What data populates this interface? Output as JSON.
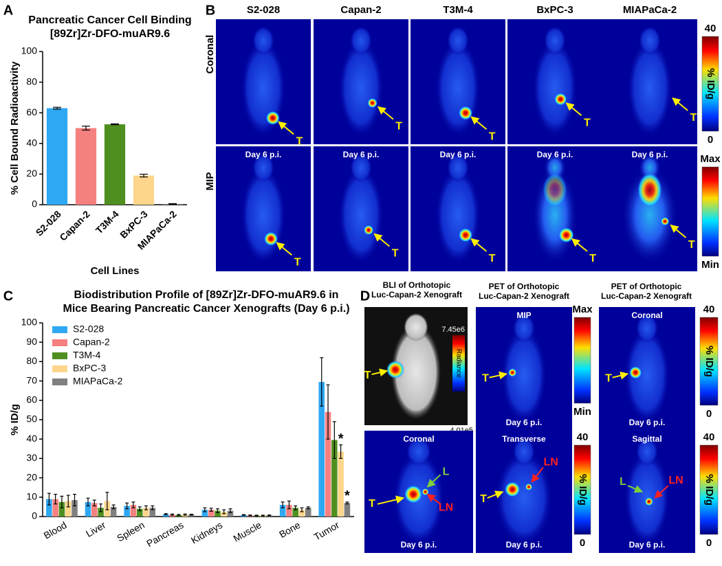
{
  "panel_labels": [
    "A",
    "B",
    "C",
    "D"
  ],
  "chart_data": [
    {
      "type": "bar",
      "title": [
        "Pancreatic Cancer Cell Binding",
        "[89Zr]Zr-DFO-muAR9.6"
      ],
      "x_label": "Cell Lines",
      "y_label": "% Cell Bound Radioactivity",
      "categories": [
        "S2-028",
        "Capan-2",
        "T3M-4",
        "BxPC-3",
        "MIAPaCa-2"
      ],
      "values": [
        63,
        50,
        52.5,
        19,
        0.5
      ],
      "errors": [
        0.6,
        1.3,
        0.3,
        0.9,
        0.2
      ],
      "colors": [
        "#2ea8f2",
        "#f58080",
        "#4f8f1f",
        "#fdd68c",
        "#808080"
      ],
      "ylim": [
        0,
        100
      ],
      "yticks": [
        0,
        20,
        40,
        60,
        80,
        100
      ]
    },
    {
      "type": "grouped_bar",
      "title": [
        "Biodistribution Profile of [89Zr]Zr-DFO-muAR9.6 in",
        "Mice Bearing Pancreatic Cancer Xenografts (Day 6 p.i.)"
      ],
      "y_label": "% ID/g",
      "categories": [
        "Blood",
        "Liver",
        "Spleen",
        "Pancreas",
        "Kidneys",
        "Muscle",
        "Bone",
        "Tumor"
      ],
      "series": [
        {
          "name": "S2-028",
          "color": "#2ea8f2",
          "values": [
            9,
            7.5,
            5.5,
            1.2,
            3.5,
            0.8,
            6,
            69.5
          ],
          "errors": [
            3,
            2,
            1.5,
            0.3,
            1,
            0.2,
            1.5,
            12.5
          ]
        },
        {
          "name": "Capan-2",
          "color": "#f58080",
          "values": [
            9,
            7,
            6,
            1,
            3.5,
            0.6,
            6,
            54
          ],
          "errors": [
            2.5,
            1.5,
            1.5,
            0.3,
            0.8,
            0.2,
            2,
            14
          ]
        },
        {
          "name": "T3M-4",
          "color": "#4f8f1f",
          "values": [
            7.5,
            4.5,
            4,
            0.8,
            3,
            0.5,
            4.5,
            39.5
          ],
          "errors": [
            3,
            2,
            1,
            0.3,
            1,
            0.2,
            1,
            9.5
          ]
        },
        {
          "name": "BxPC-3",
          "color": "#fdd68c",
          "values": [
            8,
            8,
            4.5,
            1,
            2.5,
            0.5,
            3.5,
            33.5
          ],
          "errors": [
            3,
            4.5,
            1,
            0.3,
            1,
            0.2,
            1,
            3.5
          ]
        },
        {
          "name": "MIAPaCa-2",
          "color": "#808080",
          "values": [
            8.5,
            5,
            4.5,
            1,
            3,
            0.6,
            4.5,
            7
          ],
          "errors": [
            3,
            1,
            1,
            0.2,
            1,
            0.2,
            0.5,
            0.5
          ]
        }
      ],
      "annotations": [
        {
          "text": "*",
          "category": "Tumor",
          "series": "BxPC-3"
        },
        {
          "text": "*",
          "category": "Tumor",
          "series": "MIAPaCa-2"
        }
      ],
      "legend": "upper left",
      "ylim": [
        0,
        100
      ],
      "yticks": [
        0,
        10,
        20,
        30,
        40,
        50,
        60,
        70,
        80,
        90,
        100
      ]
    }
  ],
  "panel_b": {
    "columns": [
      "S2-028",
      "Capan-2",
      "T3M-4",
      "BxPC-3",
      "MIAPaCa-2"
    ],
    "rows": [
      "Coronal",
      "MIP"
    ],
    "timepoint": "Day 6 p.i.",
    "tumor_label": "T",
    "colorbars": [
      {
        "max": 40,
        "min": 0,
        "label": "% ID/g"
      },
      {
        "max": "Max",
        "min": "Min"
      }
    ]
  },
  "panel_d": {
    "titles": [
      [
        "BLI of Orthotopic",
        "Luc-Capan-2 Xenograft"
      ],
      [
        "PET of Orthotopic",
        "Luc-Capan-2 Xenograft"
      ],
      [
        "PET of Orthotopic",
        "Luc-Capan-2 Xenograft"
      ]
    ],
    "views": [
      "MIP",
      "Coronal",
      "Coronal",
      "Transverse",
      "Sagittal"
    ],
    "timepoint": "Day 6 p.i.",
    "radiance": {
      "label": "Radiance",
      "max": "7.45e6",
      "min": "4.01e5"
    },
    "labels": {
      "tumor": "T",
      "liver": "L",
      "lymph_node": "LN"
    }
  }
}
